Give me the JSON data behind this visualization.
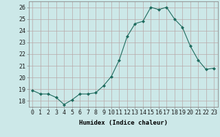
{
  "x": [
    0,
    1,
    2,
    3,
    4,
    5,
    6,
    7,
    8,
    9,
    10,
    11,
    12,
    13,
    14,
    15,
    16,
    17,
    18,
    19,
    20,
    21,
    22,
    23
  ],
  "y": [
    18.9,
    18.6,
    18.6,
    18.3,
    17.7,
    18.1,
    18.6,
    18.6,
    18.7,
    19.3,
    20.1,
    21.5,
    23.5,
    24.6,
    24.8,
    26.0,
    25.8,
    26.0,
    25.0,
    24.3,
    22.7,
    21.5,
    20.7,
    20.8
  ],
  "xlabel": "Humidex (Indice chaleur)",
  "xlim": [
    -0.5,
    23.5
  ],
  "ylim": [
    17.5,
    26.5
  ],
  "yticks": [
    18,
    19,
    20,
    21,
    22,
    23,
    24,
    25,
    26
  ],
  "xticks": [
    0,
    1,
    2,
    3,
    4,
    5,
    6,
    7,
    8,
    9,
    10,
    11,
    12,
    13,
    14,
    15,
    16,
    17,
    18,
    19,
    20,
    21,
    22,
    23
  ],
  "line_color": "#1e6b5e",
  "marker_color": "#1e6b5e",
  "bg_color": "#cce8e8",
  "grid_color": "#b8a8a8",
  "xlabel_fontsize": 6.5,
  "tick_fontsize": 6
}
